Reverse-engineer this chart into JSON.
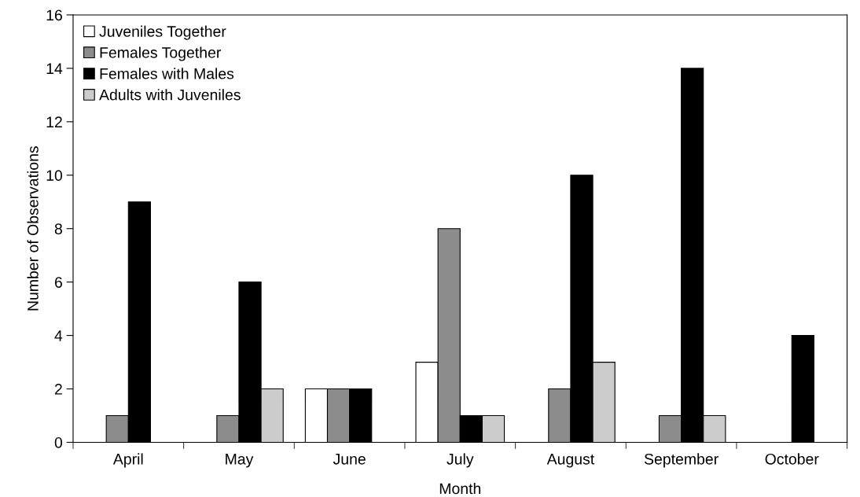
{
  "chart_data": {
    "type": "bar",
    "xlabel": "Month",
    "ylabel": "Number of Observations",
    "categories": [
      "April",
      "May",
      "June",
      "July",
      "August",
      "September",
      "October"
    ],
    "series": [
      {
        "name": "Juveniles Together",
        "color": "#ffffff",
        "values": [
          0,
          0,
          2,
          3,
          0,
          0,
          0
        ]
      },
      {
        "name": "Females Together",
        "color": "#8c8c8c",
        "values": [
          1,
          1,
          2,
          8,
          2,
          1,
          0
        ]
      },
      {
        "name": "Females with Males",
        "color": "#000000",
        "values": [
          9,
          6,
          2,
          1,
          10,
          14,
          4
        ]
      },
      {
        "name": "Adults with Juveniles",
        "color": "#cccccc",
        "values": [
          0,
          2,
          0,
          1,
          3,
          1,
          0
        ]
      }
    ],
    "ylim": [
      0,
      16
    ],
    "yticks": [
      0,
      2,
      4,
      6,
      8,
      10,
      12,
      14,
      16
    ],
    "grid": false,
    "legend": "top left"
  }
}
